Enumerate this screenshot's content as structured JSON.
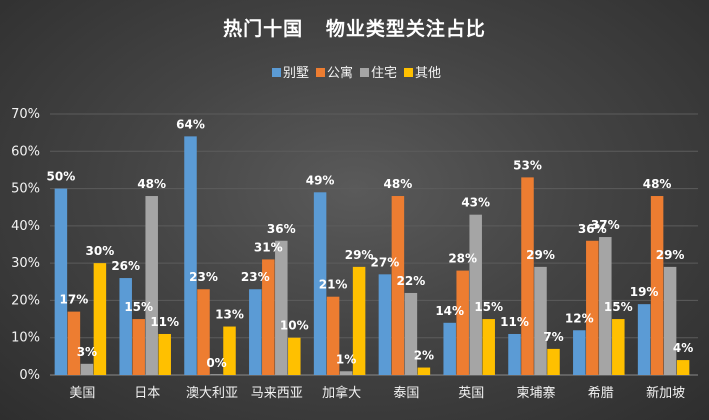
{
  "chart_data": {
    "type": "bar",
    "title": "热门十国   物业类型关注占比",
    "categories": [
      "美国",
      "日本",
      "澳大利亚",
      "马来西亚",
      "加拿大",
      "泰国",
      "英国",
      "柬埔寨",
      "希腊",
      "新加坡"
    ],
    "series": [
      {
        "name": "别墅",
        "color": "#5b9bd5",
        "values": [
          50,
          26,
          64,
          23,
          49,
          27,
          14,
          11,
          12,
          19
        ]
      },
      {
        "name": "公寓",
        "color": "#ed7d31",
        "values": [
          17,
          15,
          23,
          31,
          21,
          48,
          28,
          53,
          36,
          48
        ]
      },
      {
        "name": "住宅",
        "color": "#a5a5a5",
        "values": [
          3,
          48,
          0,
          36,
          1,
          22,
          43,
          29,
          37,
          29
        ]
      },
      {
        "name": "其他",
        "color": "#ffc000",
        "values": [
          30,
          11,
          13,
          10,
          29,
          2,
          15,
          7,
          15,
          4
        ]
      }
    ],
    "y_tick_labels": [
      "0%",
      "10%",
      "20%",
      "30%",
      "40%",
      "50%",
      "60%",
      "70%"
    ],
    "ylim": [
      0,
      70
    ],
    "y_tick_step": 10,
    "value_suffix": "%",
    "grid": true,
    "legend_position": "top"
  }
}
